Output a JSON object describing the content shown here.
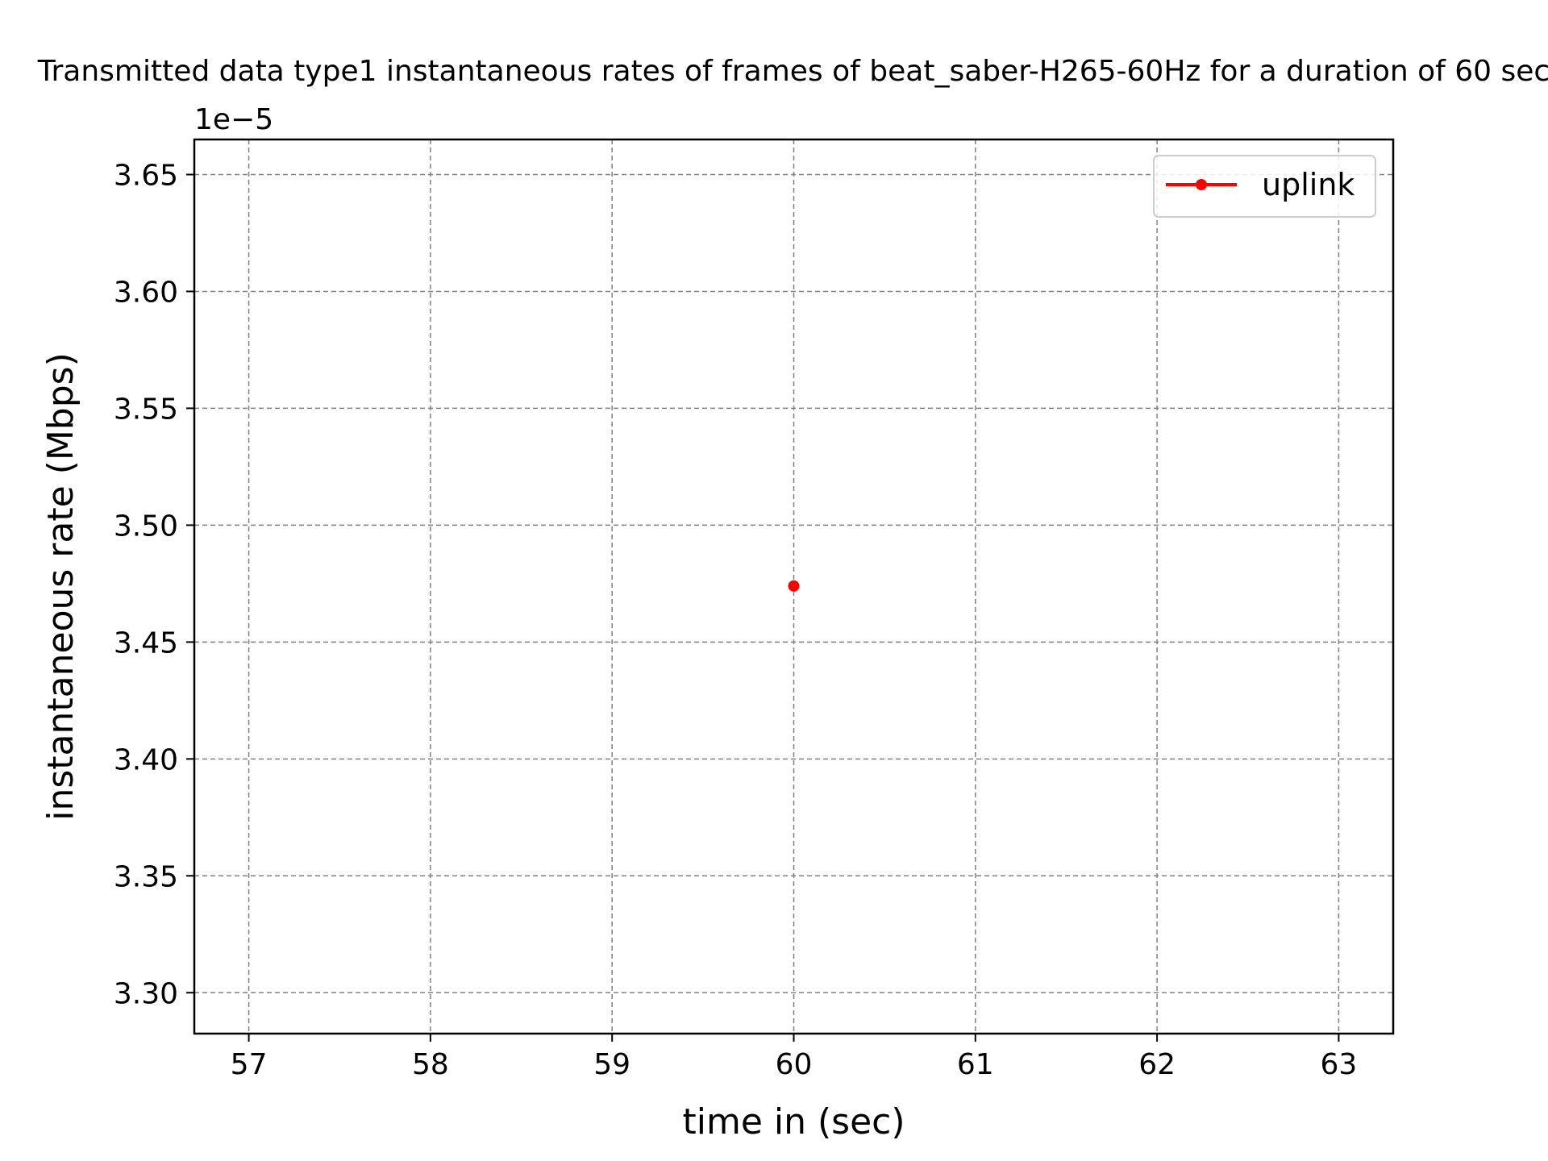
{
  "chart_data": {
    "type": "line",
    "title": "Transmitted data type1 instantaneous rates of frames of beat_saber-H265-60Hz for a duration of 60 sec",
    "xlabel": "time in (sec)",
    "ylabel": "instantaneous rate (Mbps)",
    "y_offset_label": "1e−5",
    "xlim": [
      56.7,
      63.3
    ],
    "ylim": [
      3.2825e-05,
      3.665e-05
    ],
    "x_ticks": [
      57,
      58,
      59,
      60,
      61,
      62,
      63
    ],
    "x_tick_labels": [
      "57",
      "58",
      "59",
      "60",
      "61",
      "62",
      "63"
    ],
    "y_ticks": [
      3.3e-05,
      3.35e-05,
      3.4e-05,
      3.45e-05,
      3.5e-05,
      3.55e-05,
      3.6e-05,
      3.65e-05
    ],
    "y_tick_labels": [
      "3.30",
      "3.35",
      "3.40",
      "3.45",
      "3.50",
      "3.55",
      "3.60",
      "3.65"
    ],
    "grid": true,
    "legend_position": "top-right",
    "series": [
      {
        "name": "uplink",
        "color": "#ff0000",
        "marker": "dot",
        "x": [
          60
        ],
        "y": [
          3.474e-05
        ]
      }
    ]
  }
}
